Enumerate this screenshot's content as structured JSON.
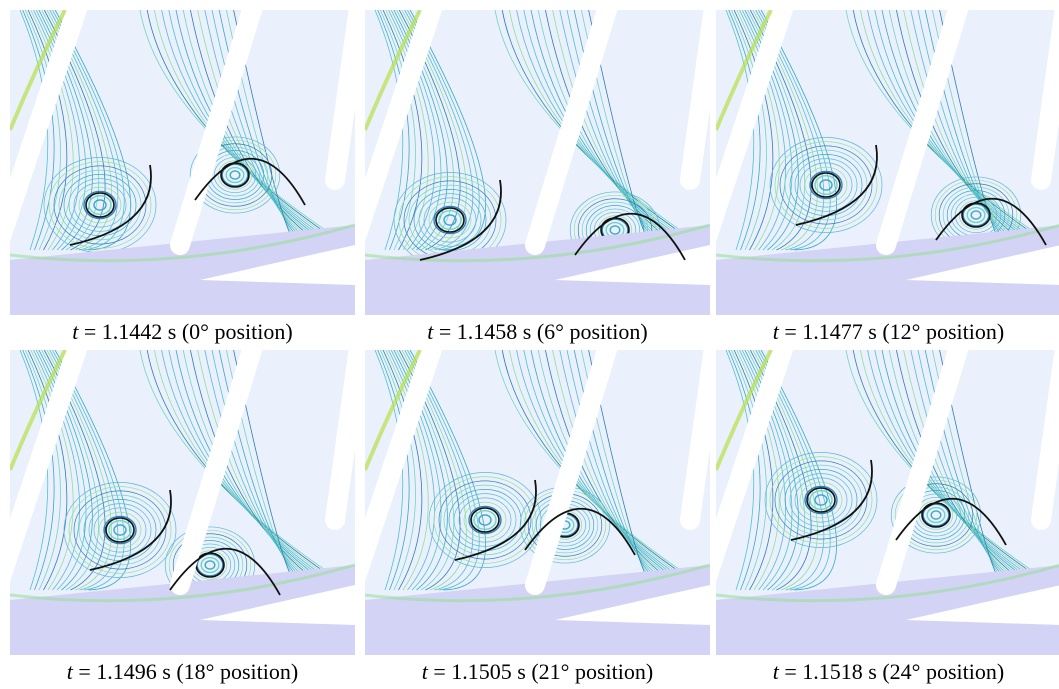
{
  "panels": [
    {
      "caption": {
        "variable": "t",
        "text": " = 1.1442 s (0° position)"
      }
    },
    {
      "caption": {
        "variable": "t",
        "text": " = 1.1458 s (6° position)"
      }
    },
    {
      "caption": {
        "variable": "t",
        "text": " = 1.1477 s (12° position)"
      }
    },
    {
      "caption": {
        "variable": "t",
        "text": " = 1.1496 s (18° position)"
      }
    },
    {
      "caption": {
        "variable": "t",
        "text": " = 1.1505 s (21° position)"
      }
    },
    {
      "caption": {
        "variable": "t",
        "text": " = 1.1518 s (24° position)"
      }
    }
  ]
}
